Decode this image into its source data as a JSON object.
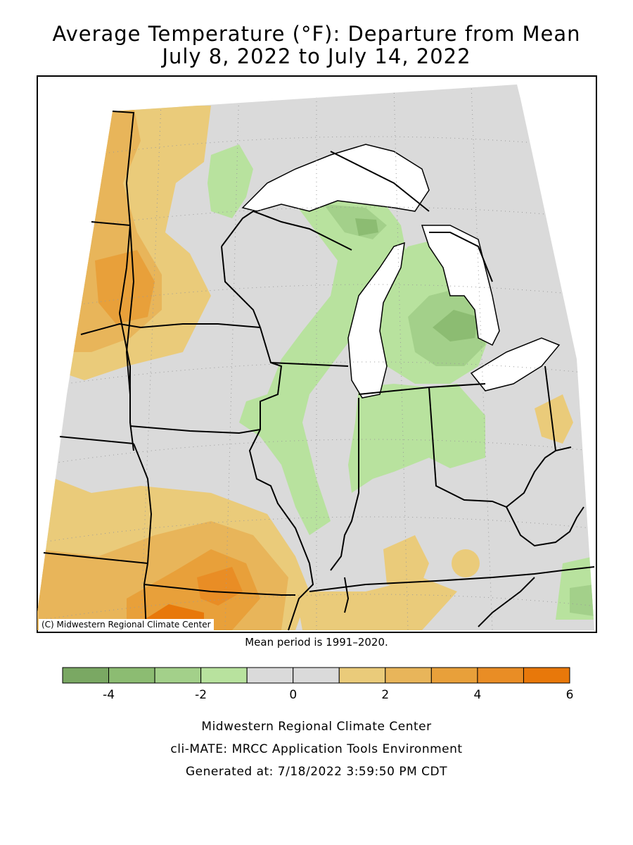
{
  "title": {
    "line1": "Average Temperature (°F): Departure from Mean",
    "line2": "July 8, 2022 to July 14, 2022"
  },
  "map": {
    "copyright": "(C) Midwestern Regional Climate Center",
    "mean_period": "Mean period is 1991–2020.",
    "water_color": "#ffffff",
    "border_color": "#000000"
  },
  "legend": {
    "bins": [
      {
        "from": -5,
        "to": -4,
        "color": "#7aa863"
      },
      {
        "from": -4,
        "to": -3,
        "color": "#8cbc72"
      },
      {
        "from": -3,
        "to": -2,
        "color": "#a3d08a"
      },
      {
        "from": -2,
        "to": -1,
        "color": "#b8e29e"
      },
      {
        "from": -1,
        "to": 0,
        "color": "#dadada"
      },
      {
        "from": 0,
        "to": 1,
        "color": "#dadada"
      },
      {
        "from": 1,
        "to": 2,
        "color": "#eacb7a"
      },
      {
        "from": 2,
        "to": 3,
        "color": "#e8b55a"
      },
      {
        "from": 3,
        "to": 4,
        "color": "#e8a03a"
      },
      {
        "from": 4,
        "to": 5,
        "color": "#e98d25"
      },
      {
        "from": 5,
        "to": 6,
        "color": "#e8780a"
      }
    ],
    "tick_labels": [
      "-4",
      "-2",
      "0",
      "2",
      "4",
      "6"
    ],
    "tick_values": [
      -4,
      -2,
      0,
      2,
      4,
      6
    ]
  },
  "footer": {
    "line1": "Midwestern Regional Climate Center",
    "line2": "cli-MATE: MRCC Application Tools Environment",
    "line3": "Generated at: 7/18/2022 3:59:50 PM CDT"
  }
}
